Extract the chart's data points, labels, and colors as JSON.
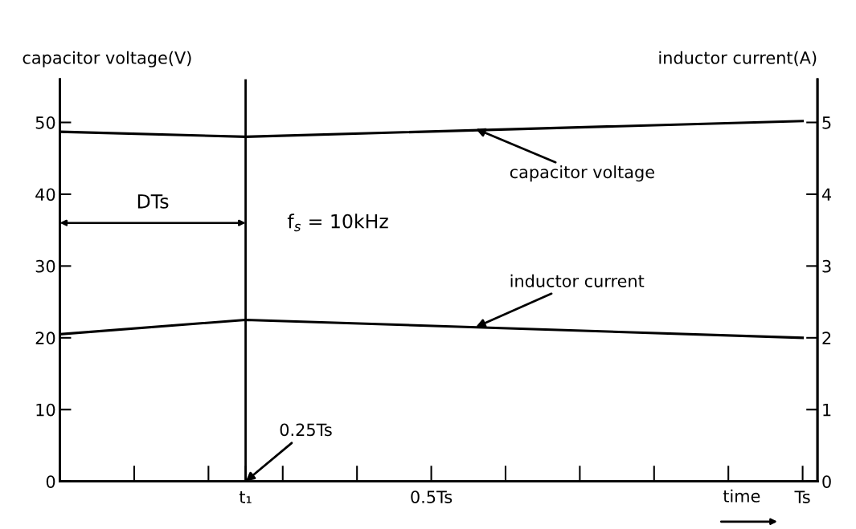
{
  "chart_data": {
    "type": "line",
    "xlabel": "time",
    "ylabel": "capacitor voltage(V)",
    "y2label": "inductor current(A)",
    "categories": [
      null,
      null,
      null,
      null,
      null,
      "t₁",
      null,
      null,
      null,
      null,
      "0.5Ts",
      null,
      null,
      null,
      null,
      null,
      null,
      null,
      null,
      null,
      "Ts"
    ],
    "series": [
      {
        "color": "#000000",
        "values": [
          48.7,
          null,
          null,
          null,
          null,
          48.0,
          null,
          null,
          null,
          null,
          null,
          null,
          null,
          null,
          null,
          null,
          null,
          null,
          null,
          null,
          50.2
        ]
      },
      {
        "color": "#000000",
        "axis": "y2",
        "values": [
          2.05,
          null,
          null,
          null,
          null,
          2.25,
          null,
          null,
          null,
          null,
          null,
          null,
          null,
          null,
          null,
          null,
          null,
          null,
          null,
          null,
          2.0
        ]
      }
    ],
    "ylim": [
      0,
      56
    ],
    "yticks": [
      0,
      10,
      20,
      30,
      40,
      50
    ],
    "y2lim": [
      0,
      5.6
    ],
    "y2ticks": [
      0,
      1,
      2,
      3,
      4,
      5
    ],
    "ref_lines": [
      {
        "axis": "x",
        "value": "t₁",
        "color": "#000000",
        "line_style": "solid"
      }
    ],
    "annotations": [
      "DTs",
      "f$_{s}$ = 10kHz",
      {
        "text": "0.25Ts",
        "x": "t₁",
        "y": 0
      },
      {
        "text": "capacitor voltage",
        "y": 49.1
      },
      {
        "text": "inductor current",
        "y": 21.5
      }
    ],
    "grid": false,
    "legend": false,
    "marker": "none",
    "line_style": "solid"
  }
}
